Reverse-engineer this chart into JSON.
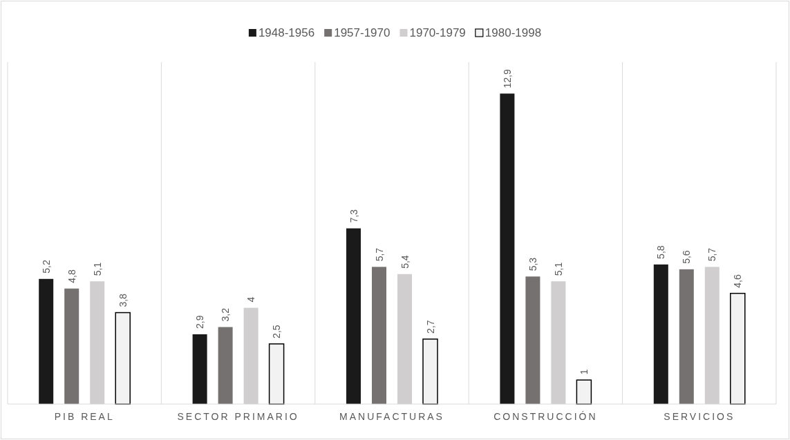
{
  "chart_data": {
    "type": "bar",
    "categories": [
      "PIB REAL",
      "SECTOR PRIMARIO",
      "MANUFACTURAS",
      "CONSTRUCCIÓN",
      "SERVICIOS"
    ],
    "series": [
      {
        "name": "1948-1956",
        "color": "#1a1a1a",
        "values": [
          5.2,
          2.9,
          7.3,
          12.9,
          5.8
        ],
        "value_labels": [
          "5,2",
          "2,9",
          "7,3",
          "12,9",
          "5,8"
        ]
      },
      {
        "name": "1957-1970",
        "color": "#767171",
        "values": [
          4.8,
          3.2,
          5.7,
          5.3,
          5.6
        ],
        "value_labels": [
          "4,8",
          "3,2",
          "5,7",
          "5,3",
          "5,6"
        ]
      },
      {
        "name": "1970-1979",
        "color": "#d0cece",
        "values": [
          5.1,
          4,
          5.4,
          5.1,
          5.7
        ],
        "value_labels": [
          "5,1",
          "4",
          "5,4",
          "5,1",
          "5,7"
        ]
      },
      {
        "name": "1980-1998",
        "color": "#f2f2f2",
        "values": [
          3.8,
          2.5,
          2.7,
          1,
          4.6
        ],
        "value_labels": [
          "3,8",
          "2,5",
          "2,7",
          "1",
          "4,6"
        ]
      }
    ],
    "grid": "x",
    "legend": "top",
    "tick_labels": "x"
  }
}
